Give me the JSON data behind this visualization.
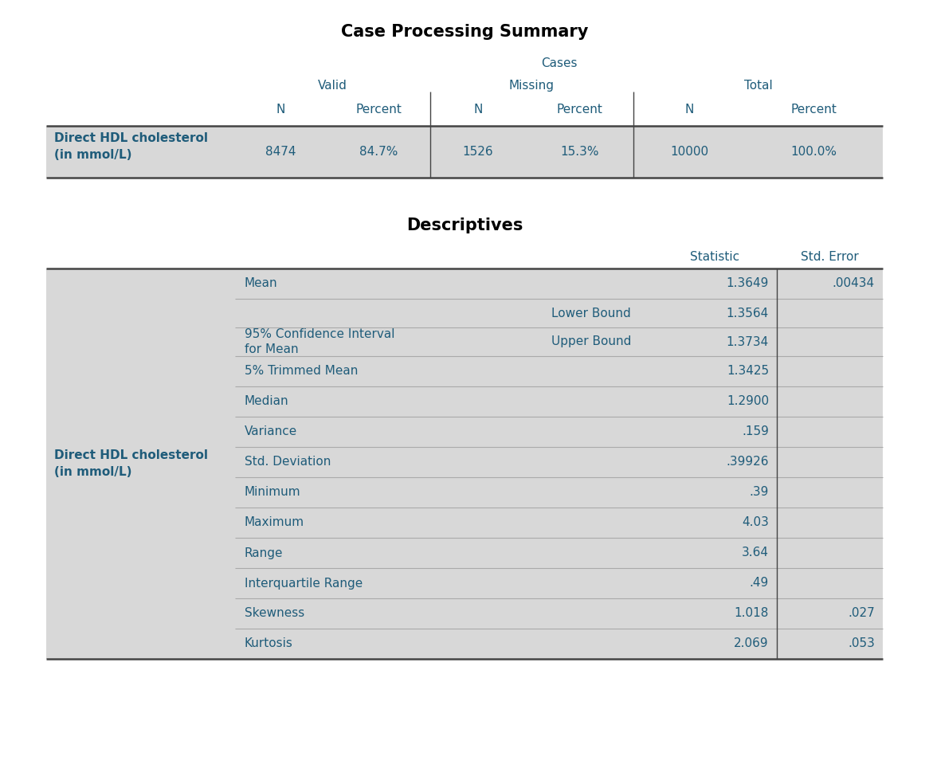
{
  "bg_color": "#ffffff",
  "header_text_color": "#1f5c7a",
  "cell_text_color": "#1f5c7a",
  "title_color": "#000000",
  "row_bg_light": "#d8d8d8",
  "line_color_dark": "#444444",
  "line_color_light": "#aaaaaa",
  "table1_title": "Case Processing Summary",
  "table1_data": [
    "8474",
    "84.7%",
    "1526",
    "15.3%",
    "10000",
    "100.0%"
  ],
  "table2_title": "Descriptives",
  "table2_rows": [
    {
      "label": "Mean",
      "sublabel": "",
      "statistic": "1.3649",
      "std_error": ".00434"
    },
    {
      "label": "95% Confidence Interval\nfor Mean",
      "sublabel": "Lower Bound",
      "statistic": "1.3564",
      "std_error": ""
    },
    {
      "label": "",
      "sublabel": "Upper Bound",
      "statistic": "1.3734",
      "std_error": ""
    },
    {
      "label": "5% Trimmed Mean",
      "sublabel": "",
      "statistic": "1.3425",
      "std_error": ""
    },
    {
      "label": "Median",
      "sublabel": "",
      "statistic": "1.2900",
      "std_error": ""
    },
    {
      "label": "Variance",
      "sublabel": "",
      "statistic": ".159",
      "std_error": ""
    },
    {
      "label": "Std. Deviation",
      "sublabel": "",
      "statistic": ".39926",
      "std_error": ""
    },
    {
      "label": "Minimum",
      "sublabel": "",
      "statistic": ".39",
      "std_error": ""
    },
    {
      "label": "Maximum",
      "sublabel": "",
      "statistic": "4.03",
      "std_error": ""
    },
    {
      "label": "Range",
      "sublabel": "",
      "statistic": "3.64",
      "std_error": ""
    },
    {
      "label": "Interquartile Range",
      "sublabel": "",
      "statistic": ".49",
      "std_error": ""
    },
    {
      "label": "Skewness",
      "sublabel": "",
      "statistic": "1.018",
      "std_error": ".027"
    },
    {
      "label": "Kurtosis",
      "sublabel": "",
      "statistic": "2.069",
      "std_error": ".053"
    }
  ]
}
